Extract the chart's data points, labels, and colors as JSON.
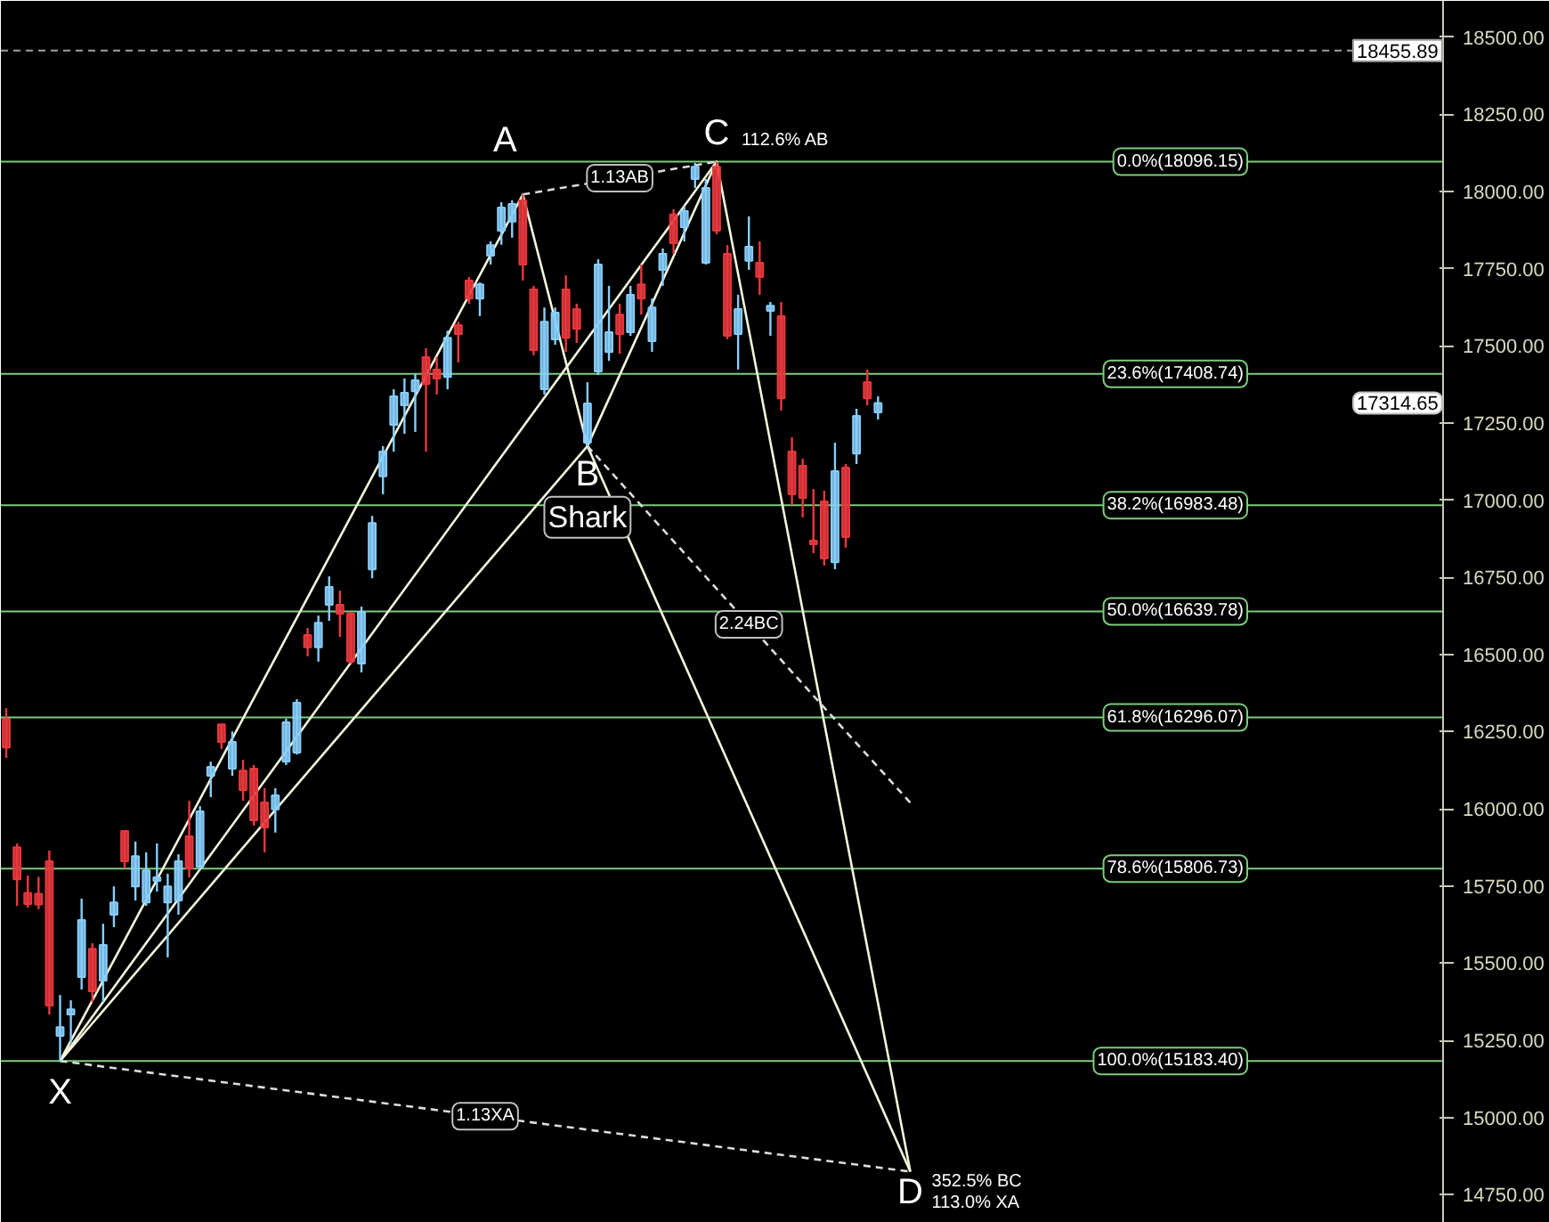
{
  "chart_data": {
    "type": "candlestick",
    "categories": [
      null,
      null,
      null,
      null,
      null,
      null,
      null,
      null,
      null,
      null,
      null,
      null,
      null,
      null,
      null,
      null,
      null,
      null,
      null,
      null,
      null,
      null,
      null,
      null,
      null,
      null,
      null,
      null,
      null,
      null,
      null,
      null,
      null,
      null,
      null,
      null,
      null,
      null,
      null,
      null,
      null,
      null,
      null,
      null,
      null,
      null,
      null,
      null,
      null,
      null,
      null,
      null,
      null,
      null,
      null,
      null,
      null,
      null,
      null,
      null,
      null,
      null,
      null,
      null,
      null,
      null,
      null,
      null,
      null,
      null,
      null,
      null,
      null,
      null,
      null,
      null,
      null,
      null,
      null,
      null,
      null,
      null,
      null,
      null,
      null,
      null,
      null,
      null,
      null,
      null,
      null,
      null,
      null,
      null,
      null,
      null,
      null,
      null,
      null,
      null,
      null,
      null,
      null,
      null,
      null,
      null,
      null,
      null,
      null,
      null,
      null,
      null,
      null,
      null,
      null,
      null,
      null,
      null,
      null,
      null,
      null,
      null,
      null,
      null,
      null,
      null,
      null,
      null,
      null,
      null,
      null,
      null,
      null,
      null
    ],
    "ohlc": [
      [
        16292,
        16326,
        16165,
        16199
      ],
      [
        15876,
        15888,
        15686,
        15772
      ],
      [
        15728,
        15784,
        15680,
        15692
      ],
      [
        15725,
        15780,
        15675,
        15690
      ],
      [
        15830,
        15865,
        15334,
        15363
      ],
      [
        15265,
        15397,
        15183,
        15293
      ],
      [
        15334,
        15380,
        15242,
        15351
      ],
      [
        15455,
        15709,
        15415,
        15640
      ],
      [
        15547,
        15565,
        15374,
        15409
      ],
      [
        15444,
        15628,
        15374,
        15559
      ],
      [
        15657,
        15749,
        15617,
        15697
      ],
      [
        15928,
        15928,
        15807,
        15830
      ],
      [
        15749,
        15894,
        15703,
        15847
      ],
      [
        15697,
        15859,
        15686,
        15801
      ],
      [
        15767,
        15888,
        15732,
        15778
      ],
      [
        15697,
        15790,
        15519,
        15749
      ],
      [
        15703,
        15853,
        15657,
        15830
      ],
      [
        15911,
        16026,
        15778,
        15807
      ],
      [
        15813,
        16009,
        15801,
        15992
      ],
      [
        16107,
        16153,
        16038,
        16136
      ],
      [
        16274,
        16274,
        16194,
        16217
      ],
      [
        16130,
        16251,
        16107,
        16217
      ],
      [
        16124,
        16159,
        16026,
        16061
      ],
      [
        16130,
        16142,
        15946,
        15963
      ],
      [
        16021,
        16067,
        15859,
        15940
      ],
      [
        15998,
        16067,
        15923,
        16044
      ],
      [
        16153,
        16292,
        16142,
        16280
      ],
      [
        16182,
        16355,
        16176,
        16344
      ],
      [
        16563,
        16586,
        16494,
        16523
      ],
      [
        16523,
        16626,
        16477,
        16603
      ],
      [
        16661,
        16753,
        16609,
        16719
      ],
      [
        16661,
        16707,
        16557,
        16632
      ],
      [
        16632,
        16638,
        16471,
        16477
      ],
      [
        16471,
        16655,
        16442,
        16638
      ],
      [
        16776,
        16949,
        16747,
        16926
      ],
      [
        17077,
        17175,
        17019,
        17157
      ],
      [
        17244,
        17359,
        17157,
        17336
      ],
      [
        17307,
        17394,
        17215,
        17348
      ],
      [
        17353,
        17411,
        17221,
        17388
      ],
      [
        17463,
        17492,
        17157,
        17376
      ],
      [
        17423,
        17463,
        17342,
        17394
      ],
      [
        17399,
        17549,
        17359,
        17526
      ],
      [
        17567,
        17578,
        17446,
        17538
      ],
      [
        17711,
        17723,
        17636,
        17653
      ],
      [
        17653,
        17705,
        17596,
        17699
      ],
      [
        17792,
        17838,
        17763,
        17826
      ],
      [
        17873,
        17965,
        17827,
        17948
      ],
      [
        17902,
        17971,
        17850,
        17959
      ],
      [
        17971,
        17990,
        17711,
        17763
      ],
      [
        17682,
        17694,
        17469,
        17486
      ],
      [
        17359,
        17624,
        17342,
        17578
      ],
      [
        17521,
        17624,
        17503,
        17607
      ],
      [
        17682,
        17728,
        17480,
        17526
      ],
      [
        17619,
        17636,
        17509,
        17555
      ],
      [
        17186,
        17382,
        17175,
        17313
      ],
      [
        17417,
        17780,
        17405,
        17763
      ],
      [
        17480,
        17694,
        17451,
        17544
      ],
      [
        17601,
        17636,
        17474,
        17538
      ],
      [
        17544,
        17694,
        17532,
        17665
      ],
      [
        17699,
        17763,
        17601,
        17653
      ],
      [
        17515,
        17653,
        17480,
        17624
      ],
      [
        17746,
        17815,
        17694,
        17798
      ],
      [
        17925,
        17942,
        17798,
        17832
      ],
      [
        17884,
        17953,
        17838,
        17936
      ],
      [
        18040,
        18092,
        18011,
        18080
      ],
      [
        17769,
        18040,
        17763,
        18011
      ],
      [
        18080,
        18096,
        17861,
        17873
      ],
      [
        17798,
        17826,
        17521,
        17532
      ],
      [
        17538,
        17665,
        17423,
        17619
      ],
      [
        17775,
        17919,
        17746,
        17821
      ],
      [
        17769,
        17838,
        17665,
        17723
      ],
      [
        17613,
        17642,
        17532,
        17630
      ],
      [
        17596,
        17642,
        17290,
        17330
      ],
      [
        17157,
        17204,
        16984,
        17019
      ],
      [
        17111,
        17134,
        16944,
        17007
      ],
      [
        16869,
        17036,
        16828,
        16857
      ],
      [
        16996,
        17030,
        16788,
        16811
      ],
      [
        16799,
        17186,
        16776,
        17094
      ],
      [
        17105,
        17117,
        16846,
        16880
      ],
      [
        17151,
        17296,
        17117,
        17273
      ],
      [
        17382,
        17423,
        17307,
        17330
      ],
      [
        17284,
        17336,
        17261,
        17314.65
      ],
      null,
      null,
      null,
      null,
      null,
      null,
      null,
      null,
      null,
      null,
      null,
      null,
      null,
      null,
      null,
      null,
      null,
      null,
      null,
      null,
      null,
      null,
      null,
      null,
      null,
      null,
      null,
      null,
      null,
      null,
      null,
      null,
      null,
      null,
      null,
      null,
      null,
      null,
      null,
      null,
      null,
      null,
      null,
      null,
      null,
      null,
      null,
      null,
      null,
      null,
      null,
      null
    ],
    "colors": [
      "#e8383d",
      "#e8383d",
      "#e8383d",
      "#e8383d",
      "#e8383d",
      "#87cefa",
      "#87cefa",
      "#87cefa",
      "#e8383d",
      "#87cefa",
      "#87cefa",
      "#e8383d",
      "#87cefa",
      "#87cefa",
      "#87cefa",
      "#87cefa",
      "#87cefa",
      "#e8383d",
      "#87cefa",
      "#87cefa",
      "#e8383d",
      "#87cefa",
      "#e8383d",
      "#e8383d",
      "#e8383d",
      "#87cefa",
      "#87cefa",
      "#87cefa",
      "#e8383d",
      "#87cefa",
      "#87cefa",
      "#e8383d",
      "#e8383d",
      "#87cefa",
      "#87cefa",
      "#87cefa",
      "#87cefa",
      "#87cefa",
      "#87cefa",
      "#e8383d",
      "#e8383d",
      "#87cefa",
      "#e8383d",
      "#e8383d",
      "#87cefa",
      "#87cefa",
      "#87cefa",
      "#87cefa",
      "#e8383d",
      "#e8383d",
      "#87cefa",
      "#87cefa",
      "#e8383d",
      "#e8383d",
      "#87cefa",
      "#87cefa",
      "#87cefa",
      "#e8383d",
      "#87cefa",
      "#e8383d",
      "#87cefa",
      "#87cefa",
      "#e8383d",
      "#87cefa",
      "#87cefa",
      "#87cefa",
      "#e8383d",
      "#e8383d",
      "#87cefa",
      "#87cefa",
      "#e8383d",
      "#87cefa",
      "#e8383d",
      "#e8383d",
      "#e8383d",
      "#e8383d",
      "#e8383d",
      "#87cefa",
      "#e8383d",
      "#87cefa",
      "#e8383d",
      "#87cefa",
      null,
      null,
      null,
      null,
      null,
      null,
      null,
      null,
      null,
      null,
      null,
      null,
      null,
      null,
      null,
      null,
      null,
      null,
      null,
      null,
      null,
      null,
      null,
      null,
      null,
      null,
      null,
      null,
      null,
      null,
      null,
      null,
      null,
      null,
      null,
      null,
      null,
      null,
      null,
      null,
      null,
      null,
      null,
      null,
      null,
      null,
      null,
      null,
      null,
      null,
      null,
      null
    ],
    "series": [
      {
        "type": "line",
        "color": "#f5f5dc",
        "values": [
          null,
          null,
          null,
          null,
          null,
          15183.4,
          null,
          null,
          null,
          null,
          null,
          null,
          null,
          null,
          null,
          null,
          null,
          null,
          null,
          null,
          null,
          null,
          null,
          null,
          null,
          null,
          null,
          null,
          null,
          null,
          null,
          null,
          null,
          null,
          null,
          null,
          null,
          null,
          null,
          null,
          null,
          null,
          null,
          null,
          null,
          null,
          null,
          null,
          17990,
          null,
          null,
          null,
          null,
          null,
          17175,
          null,
          null,
          null,
          null,
          null,
          null,
          null,
          null,
          null,
          null,
          null,
          18096.15,
          null,
          null,
          null,
          null,
          null,
          null,
          null,
          null,
          null,
          null,
          null,
          null,
          null,
          null,
          null,
          null,
          null,
          14825,
          null,
          null,
          null,
          null,
          null,
          null,
          null,
          null,
          null,
          null,
          null,
          null,
          null,
          null,
          null,
          null,
          null,
          null,
          null,
          null,
          null,
          null,
          null,
          null,
          null,
          null,
          null,
          null,
          null,
          null,
          null,
          null,
          null,
          null,
          null,
          null,
          null,
          null,
          null,
          null,
          null,
          null,
          null,
          null,
          null,
          null,
          null,
          null,
          null
        ]
      },
      {
        "type": "line",
        "color": "#f5f5dc",
        "values": [
          null,
          null,
          null,
          null,
          null,
          15183.4,
          null,
          null,
          null,
          null,
          null,
          null,
          null,
          null,
          null,
          null,
          null,
          null,
          null,
          null,
          null,
          null,
          null,
          null,
          null,
          null,
          null,
          null,
          null,
          null,
          null,
          null,
          null,
          null,
          null,
          null,
          null,
          null,
          null,
          null,
          null,
          null,
          null,
          null,
          null,
          null,
          null,
          null,
          null,
          null,
          null,
          null,
          null,
          null,
          17175,
          null,
          null,
          null,
          null,
          null,
          null,
          null,
          null,
          null,
          null,
          null,
          null,
          null,
          null,
          null,
          null,
          null,
          null,
          null,
          null,
          null,
          null,
          null,
          null,
          null,
          null,
          null,
          null,
          null,
          null,
          null,
          null,
          null,
          null,
          null,
          null,
          null,
          null,
          null,
          null,
          null,
          null,
          null,
          null,
          null,
          null,
          null,
          null,
          null,
          null,
          null,
          null,
          null,
          null,
          null,
          null,
          null,
          null,
          null,
          null,
          null,
          null,
          null,
          null,
          null,
          null,
          null,
          null,
          null,
          null,
          null,
          null,
          null,
          null,
          null,
          null,
          null,
          null,
          null
        ]
      },
      {
        "type": "line",
        "color": "#f5f5dc",
        "values": [
          null,
          null,
          null,
          null,
          null,
          15183.4,
          null,
          null,
          null,
          null,
          null,
          null,
          null,
          null,
          null,
          null,
          null,
          null,
          null,
          null,
          null,
          null,
          null,
          null,
          null,
          null,
          null,
          null,
          null,
          null,
          null,
          null,
          null,
          null,
          null,
          null,
          null,
          null,
          null,
          null,
          null,
          null,
          null,
          null,
          null,
          null,
          null,
          null,
          null,
          null,
          null,
          null,
          null,
          null,
          null,
          null,
          null,
          null,
          null,
          null,
          null,
          null,
          null,
          null,
          null,
          null,
          18096.15,
          null,
          null,
          null,
          null,
          null,
          null,
          null,
          null,
          null,
          null,
          null,
          null,
          null,
          null,
          null,
          null,
          null,
          null,
          null,
          null,
          null,
          null,
          null,
          null,
          null,
          null,
          null,
          null,
          null,
          null,
          null,
          null,
          null,
          null,
          null,
          null,
          null,
          null,
          null,
          null,
          null,
          null,
          null,
          null,
          null,
          null,
          null,
          null,
          null,
          null,
          null,
          null,
          null,
          null,
          null,
          null,
          null,
          null,
          null,
          null,
          null,
          null,
          null,
          null,
          null,
          null,
          null
        ]
      },
      {
        "type": "line",
        "color": "#f5f5dc",
        "values": [
          null,
          null,
          null,
          null,
          null,
          null,
          null,
          null,
          null,
          null,
          null,
          null,
          null,
          null,
          null,
          null,
          null,
          null,
          null,
          null,
          null,
          null,
          null,
          null,
          null,
          null,
          null,
          null,
          null,
          null,
          null,
          null,
          null,
          null,
          null,
          null,
          null,
          null,
          null,
          null,
          null,
          null,
          null,
          null,
          null,
          null,
          null,
          null,
          null,
          null,
          null,
          null,
          null,
          null,
          17175,
          null,
          null,
          null,
          null,
          null,
          null,
          null,
          null,
          null,
          null,
          null,
          null,
          null,
          null,
          null,
          null,
          null,
          null,
          null,
          null,
          null,
          null,
          null,
          null,
          null,
          null,
          null,
          null,
          null,
          14825,
          null,
          null,
          null,
          null,
          null,
          null,
          null,
          null,
          null,
          null,
          null,
          null,
          null,
          null,
          null,
          null,
          null,
          null,
          null,
          null,
          null,
          null,
          null,
          null,
          null,
          null,
          null,
          null,
          null,
          null,
          null,
          null,
          null,
          null,
          null,
          null,
          null,
          null,
          null,
          null,
          null,
          null,
          null,
          null,
          null,
          null,
          null,
          null,
          null
        ]
      },
      {
        "type": "line",
        "color": "#dcdcdc",
        "line_style": "dashed",
        "values": [
          null,
          null,
          null,
          null,
          null,
          15183.4,
          null,
          null,
          null,
          null,
          null,
          null,
          null,
          null,
          null,
          null,
          null,
          null,
          null,
          null,
          null,
          null,
          null,
          null,
          null,
          null,
          null,
          null,
          null,
          null,
          null,
          null,
          null,
          null,
          null,
          null,
          null,
          null,
          null,
          null,
          null,
          null,
          null,
          null,
          null,
          null,
          null,
          null,
          null,
          null,
          null,
          null,
          null,
          null,
          null,
          null,
          null,
          null,
          null,
          null,
          null,
          null,
          null,
          null,
          null,
          null,
          null,
          null,
          null,
          null,
          null,
          null,
          null,
          null,
          null,
          null,
          null,
          null,
          null,
          null,
          null,
          null,
          null,
          null,
          14825,
          null,
          null,
          null,
          null,
          null,
          null,
          null,
          null,
          null,
          null,
          null,
          null,
          null,
          null,
          null,
          null,
          null,
          null,
          null,
          null,
          null,
          null,
          null,
          null,
          null,
          null,
          null,
          null,
          null,
          null,
          null,
          null,
          null,
          null,
          null,
          null,
          null,
          null,
          null,
          null,
          null,
          null,
          null,
          null,
          null,
          null,
          null,
          null,
          null
        ]
      },
      {
        "type": "line",
        "color": "#dcdcdc",
        "line_style": "dashed",
        "values": [
          null,
          null,
          null,
          null,
          null,
          null,
          null,
          null,
          null,
          null,
          null,
          null,
          null,
          null,
          null,
          null,
          null,
          null,
          null,
          null,
          null,
          null,
          null,
          null,
          null,
          null,
          null,
          null,
          null,
          null,
          null,
          null,
          null,
          null,
          null,
          null,
          null,
          null,
          null,
          null,
          null,
          null,
          null,
          null,
          null,
          null,
          null,
          null,
          17990,
          null,
          null,
          null,
          null,
          null,
          null,
          null,
          null,
          null,
          null,
          null,
          null,
          null,
          null,
          null,
          null,
          null,
          18096.15,
          null,
          null,
          null,
          null,
          null,
          null,
          null,
          null,
          null,
          null,
          null,
          null,
          null,
          null,
          null,
          null,
          null,
          null,
          null,
          null,
          null,
          null,
          null,
          null,
          null,
          null,
          null,
          null,
          null,
          null,
          null,
          null,
          null,
          null,
          null,
          null,
          null,
          null,
          null,
          null,
          null,
          null,
          null,
          null,
          null,
          null,
          null,
          null,
          null,
          null,
          null,
          null,
          null,
          null,
          null,
          null,
          null,
          null,
          null,
          null,
          null,
          null,
          null,
          null,
          null,
          null,
          null
        ]
      },
      {
        "type": "line",
        "color": "#dcdcdc",
        "line_style": "dashed",
        "values": [
          null,
          null,
          null,
          null,
          null,
          null,
          null,
          null,
          null,
          null,
          null,
          null,
          null,
          null,
          null,
          null,
          null,
          null,
          null,
          null,
          null,
          null,
          null,
          null,
          null,
          null,
          null,
          null,
          null,
          null,
          null,
          null,
          null,
          null,
          null,
          null,
          null,
          null,
          null,
          null,
          null,
          null,
          null,
          null,
          null,
          null,
          null,
          null,
          null,
          null,
          null,
          null,
          null,
          null,
          17175,
          null,
          null,
          null,
          null,
          null,
          null,
          null,
          null,
          null,
          null,
          null,
          null,
          null,
          null,
          null,
          null,
          null,
          null,
          null,
          null,
          null,
          null,
          null,
          null,
          null,
          null,
          null,
          null,
          null,
          16020,
          null,
          null,
          null,
          null,
          null,
          null,
          null,
          null,
          null,
          null,
          null,
          null,
          null,
          null,
          null,
          null,
          null,
          null,
          null,
          null,
          null,
          null,
          null,
          null,
          null,
          null,
          null,
          null,
          null,
          null,
          null,
          null,
          null,
          null,
          null,
          null,
          null,
          null,
          null,
          null,
          null,
          null,
          null,
          null,
          null,
          null,
          null,
          null,
          null
        ]
      }
    ],
    "ylim": [
      14659,
      18617
    ],
    "yticks": [
      {
        "value": 14750,
        "label": "14750.00"
      },
      {
        "value": 15000,
        "label": "15000.00"
      },
      {
        "value": 15250,
        "label": "15250.00"
      },
      {
        "value": 15500,
        "label": "15500.00"
      },
      {
        "value": 15750,
        "label": "15750.00"
      },
      {
        "value": 16000,
        "label": "16000.00"
      },
      {
        "value": 16250,
        "label": "16250.00"
      },
      {
        "value": 16500,
        "label": "16500.00"
      },
      {
        "value": 16750,
        "label": "16750.00"
      },
      {
        "value": 17000,
        "label": "17000.00"
      },
      {
        "value": 17250,
        "label": "17250.00"
      },
      {
        "value": 17500,
        "label": "17500.00"
      },
      {
        "value": 17750,
        "label": "17750.00"
      },
      {
        "value": 18000,
        "label": "18000.00"
      },
      {
        "value": 18250,
        "label": "18250.00"
      },
      {
        "value": 18500,
        "label": "18500.00"
      }
    ],
    "tick_labels": "y",
    "ref_lines": [
      {
        "axis": "y",
        "value": 18096.15,
        "label": "0.0%(18096.15)",
        "color": "#7ccd7c"
      },
      {
        "axis": "y",
        "value": 17408.74,
        "label": "23.6%(17408.74)",
        "color": "#7ccd7c"
      },
      {
        "axis": "y",
        "value": 16983.48,
        "label": "38.2%(16983.48)",
        "color": "#7ccd7c"
      },
      {
        "axis": "y",
        "value": 16639.78,
        "label": "50.0%(16639.78)",
        "color": "#7ccd7c"
      },
      {
        "axis": "y",
        "value": 16296.07,
        "label": "61.8%(16296.07)",
        "color": "#7ccd7c"
      },
      {
        "axis": "y",
        "value": 15806.73,
        "label": "78.6%(15806.73)",
        "color": "#7ccd7c"
      },
      {
        "axis": "y",
        "value": 15183.4,
        "label": "100.0%(15183.40)",
        "color": "#7ccd7c"
      },
      {
        "axis": "y",
        "value": 18455.89,
        "label": "18455.89",
        "color": "#a0a0a0",
        "line_style": "dashed"
      }
    ],
    "annotations": [
      "X",
      "A",
      "B",
      "Shark",
      "C",
      "D",
      "1.13AB",
      "112.6% AB",
      "2.24BC",
      "1.13XA",
      "352.5% BC",
      "113.0% XA",
      "17314.65"
    ]
  }
}
